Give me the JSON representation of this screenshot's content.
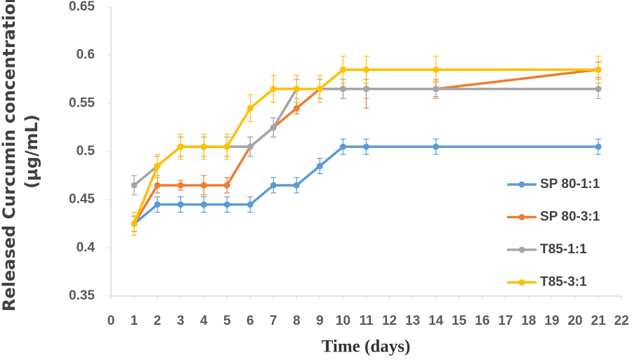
{
  "chart_data": {
    "type": "line",
    "xlabel": "Time (days)",
    "ylabel": [
      "Released Curcumin concentration",
      "(µg/mL)"
    ],
    "x": [
      1,
      2,
      3,
      4,
      5,
      6,
      7,
      8,
      9,
      10,
      11,
      14,
      21
    ],
    "xlim": [
      0,
      22
    ],
    "xticks": [
      0,
      1,
      2,
      3,
      4,
      5,
      6,
      7,
      8,
      9,
      10,
      11,
      12,
      13,
      14,
      15,
      16,
      17,
      18,
      19,
      20,
      21,
      22
    ],
    "ylim": [
      0.35,
      0.65
    ],
    "yticks": [
      0.35,
      0.4,
      0.45,
      0.5,
      0.55,
      0.6,
      0.65
    ],
    "grid": false,
    "legend": "right",
    "series": [
      {
        "name": "SP 80-1:1",
        "color": "#5b9bd5",
        "values": [
          0.425,
          0.445,
          0.445,
          0.445,
          0.445,
          0.445,
          0.465,
          0.465,
          0.485,
          0.505,
          0.505,
          0.505,
          0.505
        ],
        "errors": [
          0.008,
          0.008,
          0.008,
          0.008,
          0.008,
          0.008,
          0.008,
          0.008,
          0.008,
          0.008,
          0.008,
          0.008,
          0.008
        ]
      },
      {
        "name": "SP 80-3:1",
        "color": "#ed7d31",
        "values": [
          0.425,
          0.465,
          0.465,
          0.465,
          0.465,
          0.505,
          0.525,
          0.545,
          0.565,
          0.565,
          0.565,
          0.565,
          0.585
        ],
        "errors": [
          0.008,
          0.008,
          0.005,
          0.01,
          0.008,
          0.01,
          0.01,
          0.006,
          0.01,
          0.01,
          0.02,
          0.008,
          0.008
        ]
      },
      {
        "name": "T85-1:1",
        "color": "#a5a5a5",
        "values": [
          0.465,
          0.485,
          0.505,
          0.505,
          0.505,
          0.505,
          0.525,
          0.565,
          0.565,
          0.565,
          0.565,
          0.565,
          0.565
        ],
        "errors": [
          0.01,
          0.01,
          0.01,
          0.01,
          0.01,
          0.01,
          0.01,
          0.01,
          0.01,
          0.01,
          0.01,
          0.01,
          0.01
        ]
      },
      {
        "name": "T85-3:1",
        "color": "#ffc000",
        "values": [
          0.425,
          0.485,
          0.505,
          0.505,
          0.505,
          0.545,
          0.565,
          0.565,
          0.565,
          0.585,
          0.585,
          0.585,
          0.585
        ],
        "errors": [
          0.012,
          0.012,
          0.013,
          0.013,
          0.013,
          0.014,
          0.014,
          0.014,
          0.014,
          0.014,
          0.014,
          0.014,
          0.014
        ]
      }
    ]
  }
}
